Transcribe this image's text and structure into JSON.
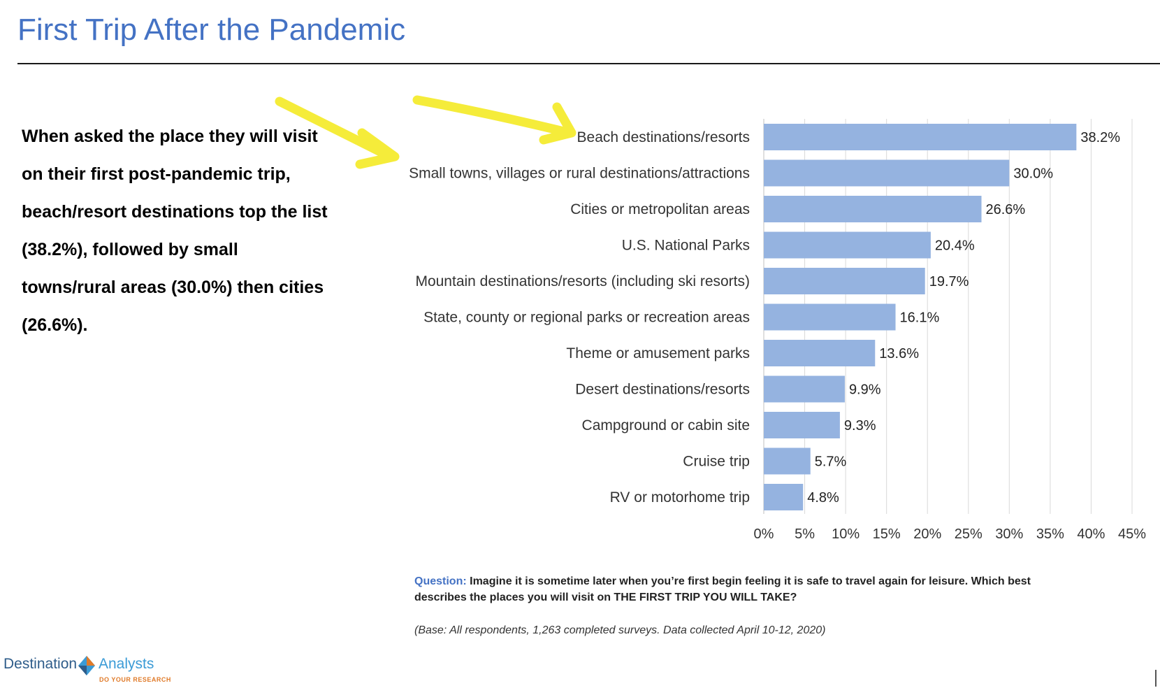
{
  "page": {
    "title": "First Trip After the Pandemic",
    "summary": "When asked the place they will visit on their first post-pandemic trip, beach/resort destinations top the list (38.2%), followed by small towns/rural areas (30.0%) then cities (26.6%).",
    "question_label": "Question:",
    "question_text": "Imagine it is sometime later when you’re first begin feeling it is safe to travel again for leisure. Which best describes the places you will visit on THE FIRST TRIP YOU WILL TAKE?",
    "base_note": "(Base: All respondents, 1,263 completed surveys. Data collected April 10-12, 2020)"
  },
  "logo": {
    "word1": "Destination",
    "word2": "Analysts",
    "tagline": "DO YOUR RESEARCH"
  },
  "colors": {
    "bar": "#95b3e0",
    "title": "#4472c4",
    "arrow": "#f5ec3a",
    "grid": "#d9d9d9"
  },
  "chart_data": {
    "type": "bar",
    "orientation": "horizontal",
    "categories": [
      "Beach destinations/resorts",
      "Small towns, villages or rural destinations/attractions",
      "Cities or metropolitan areas",
      "U.S. National Parks",
      "Mountain destinations/resorts (including ski resorts)",
      "State, county or regional parks or recreation areas",
      "Theme or amusement parks",
      "Desert destinations/resorts",
      "Campground or cabin site",
      "Cruise trip",
      "RV or motorhome trip"
    ],
    "values": [
      38.2,
      30.0,
      26.6,
      20.4,
      19.7,
      16.1,
      13.6,
      9.9,
      9.3,
      5.7,
      4.8
    ],
    "value_labels": [
      "38.2%",
      "30.0%",
      "26.6%",
      "20.4%",
      "19.7%",
      "16.1%",
      "13.6%",
      "9.9%",
      "9.3%",
      "5.7%",
      "4.8%"
    ],
    "xlim": [
      0,
      45
    ],
    "xticks": [
      0,
      5,
      10,
      15,
      20,
      25,
      30,
      35,
      40,
      45
    ],
    "xtick_labels": [
      "0%",
      "5%",
      "10%",
      "15%",
      "20%",
      "25%",
      "30%",
      "35%",
      "40%",
      "45%"
    ],
    "grid": true,
    "legend": "none"
  }
}
